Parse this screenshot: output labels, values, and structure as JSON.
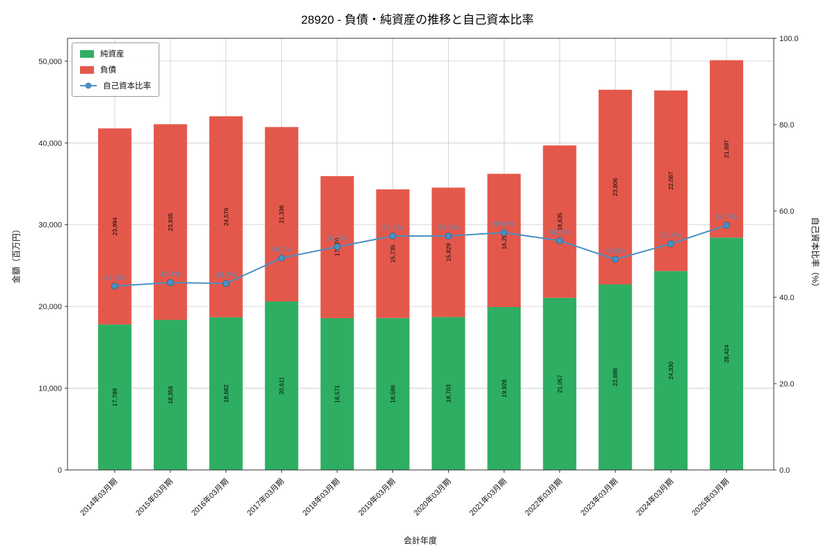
{
  "chart_data": {
    "type": "bar",
    "stacked": true,
    "title": "28920 - 負債・純資産の推移と自己資本比率",
    "xlabel": "会計年度",
    "ylabel_left": "金額（百万円）",
    "ylabel_right": "自己資本比率（%）",
    "ylim_left": [
      0,
      52800
    ],
    "ylim_right": [
      0,
      100
    ],
    "grid": true,
    "legend_position": "upper left",
    "categories": [
      "2014年03月期",
      "2015年03月期",
      "2016年03月期",
      "2017年03月期",
      "2018年03月期",
      "2019年03月期",
      "2020年03月期",
      "2021年03月期",
      "2022年03月期",
      "2023年03月期",
      "2024年03月期",
      "2025年03月期"
    ],
    "series": [
      {
        "name": "純資産",
        "color": "#2eae62",
        "values": [
          17789,
          18356,
          18682,
          20611,
          18571,
          18586,
          18703,
          19928,
          21057,
          22698,
          24330,
          28424
        ],
        "labels": [
          "17,789",
          "18,356",
          "18,682",
          "20,611",
          "18,571",
          "18,586",
          "18,703",
          "19,928",
          "21,057",
          "22,698",
          "24,330",
          "28,424"
        ]
      },
      {
        "name": "負債",
        "color": "#e4584c",
        "values": [
          23994,
          23935,
          24576,
          21336,
          17370,
          15735,
          15829,
          16296,
          18635,
          23806,
          22087,
          21697
        ],
        "labels": [
          "23,994",
          "23,935",
          "24,576",
          "21,336",
          "17,370",
          "15,735",
          "15,829",
          "16,296",
          "18,635",
          "23,806",
          "22,087",
          "21,697"
        ]
      }
    ],
    "line": {
      "name": "自己資本比率",
      "color": "#4a90c2",
      "values": [
        42.6,
        43.4,
        43.2,
        49.1,
        51.7,
        54.2,
        54.2,
        55.0,
        53.1,
        48.8,
        52.4,
        56.7
      ],
      "labels": [
        "42.6%",
        "43.4%",
        "43.2%",
        "49.1%",
        "51.7%",
        "54.2%",
        "54.2%",
        "55.0%",
        "53.1%",
        "48.8%",
        "52.4%",
        "56.7%"
      ]
    },
    "yticks_left": {
      "values": [
        0,
        10000,
        20000,
        30000,
        40000,
        50000
      ],
      "labels": [
        "0",
        "10,000",
        "20,000",
        "30,000",
        "40,000",
        "50,000"
      ]
    },
    "yticks_right": {
      "values": [
        0,
        20,
        40,
        60,
        80,
        100
      ],
      "labels": [
        "0.0",
        "20.0",
        "40.0",
        "60.0",
        "80.0",
        "100.0"
      ]
    }
  }
}
